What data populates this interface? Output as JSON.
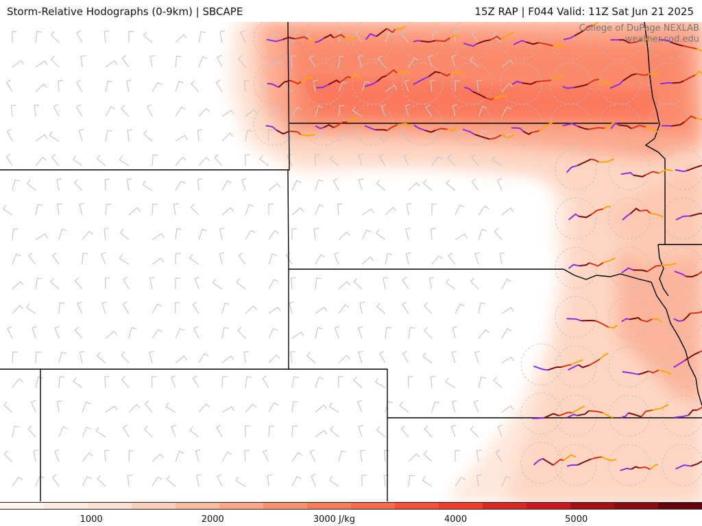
{
  "header": {
    "title_left": "Storm-Relative Hodographs (0-9km) | SBCAPE",
    "title_right": "15Z RAP | F044 Valid: 11Z Sat Jun 21 2025"
  },
  "credit": {
    "line1": "College of DuPage NEXLAB",
    "line2": "weather.cod.edu"
  },
  "colorbar": {
    "colors": [
      "#fff5f0",
      "#fee9df",
      "#fee0d2",
      "#fdd0bc",
      "#fcbba1",
      "#fca689",
      "#fc9272",
      "#fb7c5c",
      "#fb6a4a",
      "#f4503a",
      "#ef3b2c",
      "#d92723",
      "#cb181d",
      "#a50f15",
      "#8a0a11",
      "#67000d"
    ],
    "ticks": [
      {
        "label": "1000",
        "frac": 0.13
      },
      {
        "label": "2000",
        "frac": 0.303
      },
      {
        "label": "3000 J/kg",
        "frac": 0.476
      },
      {
        "label": "4000",
        "frac": 0.649
      },
      {
        "label": "5000",
        "frac": 0.821
      }
    ]
  },
  "icons": {
    "wind_barb": "wind-barb-icon",
    "hodograph": "hodograph-icon"
  }
}
